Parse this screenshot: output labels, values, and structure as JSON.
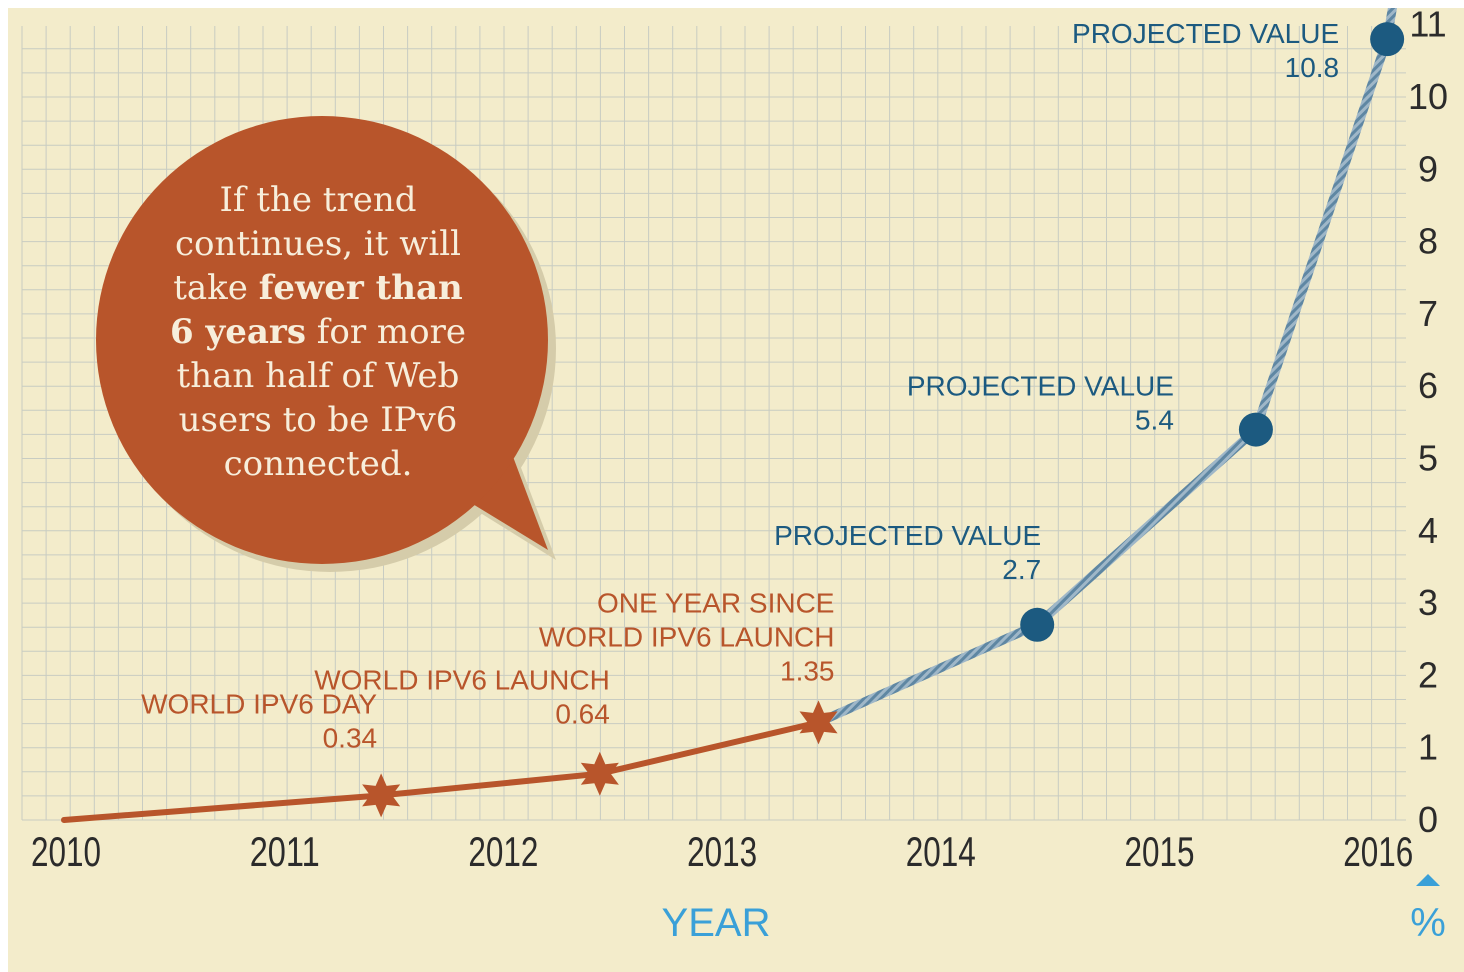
{
  "chart_data": {
    "type": "line",
    "x_ticks": [
      "2010",
      "2011",
      "2012",
      "2013",
      "2014",
      "2015",
      "2016"
    ],
    "y_ticks": [
      "0",
      "1",
      "2",
      "3",
      "4",
      "5",
      "6",
      "7",
      "8",
      "9",
      "10",
      "11"
    ],
    "ylim": [
      0,
      11
    ],
    "xlim": [
      2010,
      2016.3
    ],
    "xlabel": "YEAR",
    "ylabel": "%",
    "grid": true,
    "series": [
      {
        "kind": "actual",
        "color": "#b8552b",
        "points": [
          {
            "x": 2010.0,
            "y": 0.0
          },
          {
            "x": 2011.45,
            "y": 0.34
          },
          {
            "x": 2012.45,
            "y": 0.64
          },
          {
            "x": 2013.45,
            "y": 1.35
          }
        ]
      },
      {
        "kind": "projected",
        "color": "#7fa0b8",
        "points": [
          {
            "x": 2013.45,
            "y": 1.35
          },
          {
            "x": 2014.45,
            "y": 2.7
          },
          {
            "x": 2015.45,
            "y": 5.4
          },
          {
            "x": 2016.05,
            "y": 10.8
          }
        ]
      }
    ],
    "annotations": [
      {
        "x": 2011.45,
        "y": 0.34,
        "marker": "star",
        "color": "#b8552b",
        "lines": [
          "WORLD IPV6 DAY",
          "0.34"
        ]
      },
      {
        "x": 2012.45,
        "y": 0.64,
        "marker": "star",
        "color": "#b8552b",
        "lines": [
          "WORLD IPV6 LAUNCH",
          "0.64"
        ]
      },
      {
        "x": 2013.45,
        "y": 1.35,
        "marker": "star",
        "color": "#b8552b",
        "lines": [
          "ONE YEAR SINCE",
          "WORLD IPV6 LAUNCH",
          "1.35"
        ]
      },
      {
        "x": 2014.45,
        "y": 2.7,
        "marker": "dot",
        "color": "#1c5a80",
        "lines": [
          "PROJECTED VALUE",
          "2.7"
        ]
      },
      {
        "x": 2015.45,
        "y": 5.4,
        "marker": "dot",
        "color": "#1c5a80",
        "lines": [
          "PROJECTED VALUE",
          "5.4"
        ]
      },
      {
        "x": 2016.05,
        "y": 10.8,
        "marker": "dot",
        "color": "#1c5a80",
        "lines": [
          "PROJECTED VALUE",
          "10.8"
        ]
      }
    ]
  },
  "callout": {
    "line1": "If the trend",
    "line2": "continues, it will",
    "line3a": "take ",
    "line3b": "fewer than",
    "line4a": "6 years",
    "line4b": " for more",
    "line5": "than half of Web",
    "line6": "users to be IPv6",
    "line7": "connected.",
    "color": "#b8552b"
  }
}
